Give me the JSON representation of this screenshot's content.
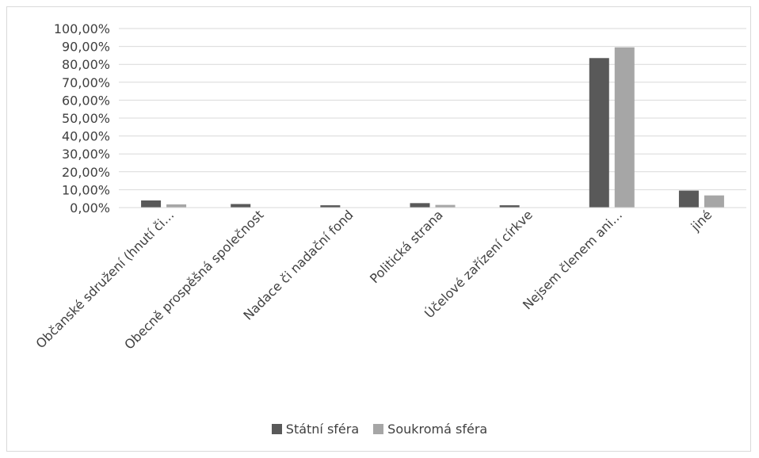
{
  "chart_data": {
    "type": "bar",
    "categories": [
      "Občanské sdružení (hnutí či…",
      "Obecně prospěšná společnost",
      "Nadace či nadační fond",
      "Politická strana",
      "Účelové zařízení církve",
      "Nejsem členem ani…",
      "jiné"
    ],
    "series": [
      {
        "name": "Státní sféra",
        "color": "#595959",
        "values": [
          4.0,
          2.0,
          1.3,
          2.5,
          1.3,
          83.5,
          9.5
        ]
      },
      {
        "name": "Soukromá sféra",
        "color": "#a6a6a6",
        "values": [
          1.8,
          0.0,
          0.0,
          1.5,
          0.0,
          89.5,
          6.8
        ]
      }
    ],
    "ylim": [
      0,
      100
    ],
    "yticks": [
      "0,00%",
      "10,00%",
      "20,00%",
      "30,00%",
      "40,00%",
      "50,00%",
      "60,00%",
      "70,00%",
      "80,00%",
      "90,00%",
      "100,00%"
    ],
    "title": "",
    "xlabel": "",
    "ylabel": "",
    "grid": true,
    "legend_position": "bottom"
  }
}
